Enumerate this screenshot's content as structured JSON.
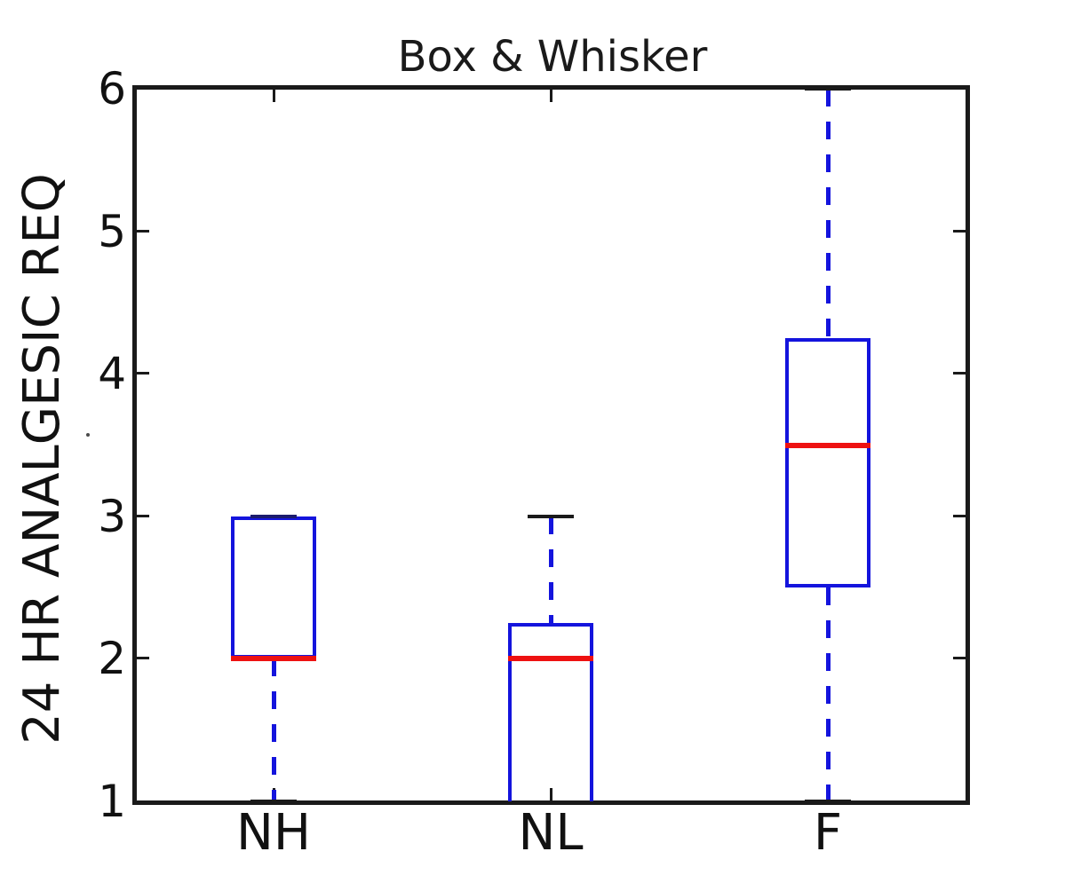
{
  "title": "Box & Whisker",
  "ylabel": "24 HR ANALGESIC REQ",
  "chart_data": {
    "type": "box",
    "title": "Box & Whisker",
    "xlabel": "",
    "ylabel": "24 HR ANALGESIC REQ",
    "categories": [
      "NH",
      "NL",
      "F"
    ],
    "ylim": [
      1,
      6
    ],
    "yticks": [
      1,
      2,
      3,
      4,
      5,
      6
    ],
    "grid": false,
    "legend": "none",
    "series": [
      {
        "name": "NH",
        "whisker_low": 1,
        "q1": 2,
        "median": 2,
        "q3": 3,
        "whisker_high": 3
      },
      {
        "name": "NL",
        "whisker_low": 1,
        "q1": 1,
        "median": 2,
        "q3": 2.25,
        "whisker_high": 3
      },
      {
        "name": "F",
        "whisker_low": 1,
        "q1": 2.5,
        "median": 3.5,
        "q3": 4.25,
        "whisker_high": 6
      }
    ],
    "colors": {
      "box": "#1414dd",
      "median": "#ee1111",
      "whisker": "#1414dd",
      "cap": "#1a1a1a",
      "cap_on_box_edge": "#1c1c6e",
      "axis": "#1a1a1a"
    }
  }
}
